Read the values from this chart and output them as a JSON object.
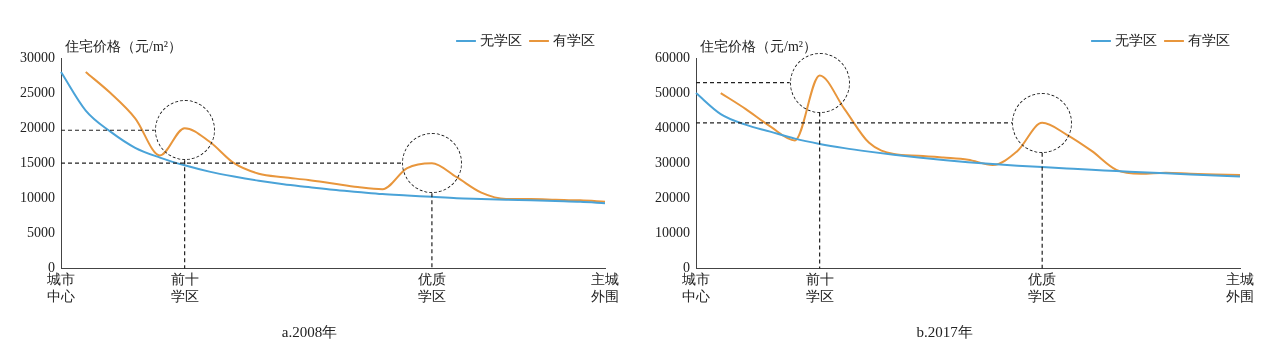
{
  "chart_data": [
    {
      "type": "line",
      "title": "a.2008年",
      "ylabel": "住宅价格（元/m²）",
      "categories": [
        "城市中心",
        null,
        null,
        null,
        null,
        "前十学区",
        null,
        null,
        null,
        null,
        null,
        null,
        null,
        null,
        null,
        "优质学区",
        null,
        null,
        null,
        null,
        null,
        null,
        "主城外围"
      ],
      "series": [
        {
          "name": "无学区",
          "color": "#4aa3d8",
          "values": [
            28000,
            22500,
            19500,
            17200,
            15800,
            14700,
            13800,
            13100,
            12500,
            12000,
            11600,
            11200,
            10900,
            10600,
            10400,
            10200,
            10000,
            9900,
            9800,
            9700,
            9600,
            9500,
            9300
          ]
        },
        {
          "name": "有学区",
          "color": "#e8963c",
          "values": [
            null,
            28000,
            25000,
            21400,
            16100,
            20000,
            18100,
            15000,
            13500,
            13000,
            12600,
            12100,
            11600,
            11300,
            14300,
            15000,
            13000,
            10800,
            9900,
            9900,
            9800,
            9700,
            9500
          ]
        }
      ],
      "ylim": [
        0,
        30000
      ],
      "yticks": [
        0,
        5000,
        10000,
        15000,
        20000,
        25000,
        30000
      ],
      "grid": false,
      "legend": "top right",
      "marker": "none",
      "line_style": "solid",
      "ref_lines": [
        {
          "axis": "y",
          "value": 19700,
          "color": "#222222",
          "line_style": "dashed"
        },
        {
          "axis": "x",
          "value": "前十学区",
          "color": "#222222",
          "line_style": "dashed"
        },
        {
          "axis": "y",
          "value": 15000,
          "color": "#222222",
          "line_style": "dashed"
        },
        {
          "axis": "x",
          "value": "优质学区",
          "color": "#222222",
          "line_style": "dashed"
        }
      ]
    },
    {
      "type": "line",
      "title": "b.2017年",
      "ylabel": "住宅价格（元/m²）",
      "categories": [
        "城市中心",
        null,
        null,
        null,
        null,
        "前十学区",
        null,
        null,
        null,
        null,
        null,
        null,
        null,
        null,
        "优质学区",
        null,
        null,
        null,
        null,
        null,
        null,
        null,
        "主城外围"
      ],
      "series": [
        {
          "name": "无学区",
          "color": "#4aa3d8",
          "values": [
            50000,
            44000,
            41000,
            39000,
            37000,
            35500,
            34300,
            33300,
            32400,
            31600,
            30900,
            30300,
            29800,
            29300,
            28900,
            28500,
            28100,
            27800,
            27400,
            27100,
            26800,
            26500,
            26200
          ]
        },
        {
          "name": "有学区",
          "color": "#e8963c",
          "values": [
            null,
            50000,
            45500,
            40500,
            36500,
            55000,
            45500,
            35800,
            32600,
            32100,
            31600,
            31000,
            29500,
            33500,
            41500,
            38100,
            33500,
            28100,
            27000,
            27300,
            27000,
            26800,
            26600
          ]
        }
      ],
      "ylim": [
        0,
        60000
      ],
      "yticks": [
        0,
        10000,
        20000,
        30000,
        40000,
        50000,
        60000
      ],
      "grid": false,
      "legend": "top right",
      "marker": "none",
      "line_style": "solid",
      "ref_lines": [
        {
          "axis": "y",
          "value": 53000,
          "color": "#222222",
          "line_style": "dashed"
        },
        {
          "axis": "x",
          "value": "前十学区",
          "color": "#222222",
          "line_style": "dashed"
        },
        {
          "axis": "y",
          "value": 41500,
          "color": "#222222",
          "line_style": "dashed"
        },
        {
          "axis": "x",
          "value": "优质学区",
          "color": "#222222",
          "line_style": "dashed"
        }
      ]
    }
  ]
}
